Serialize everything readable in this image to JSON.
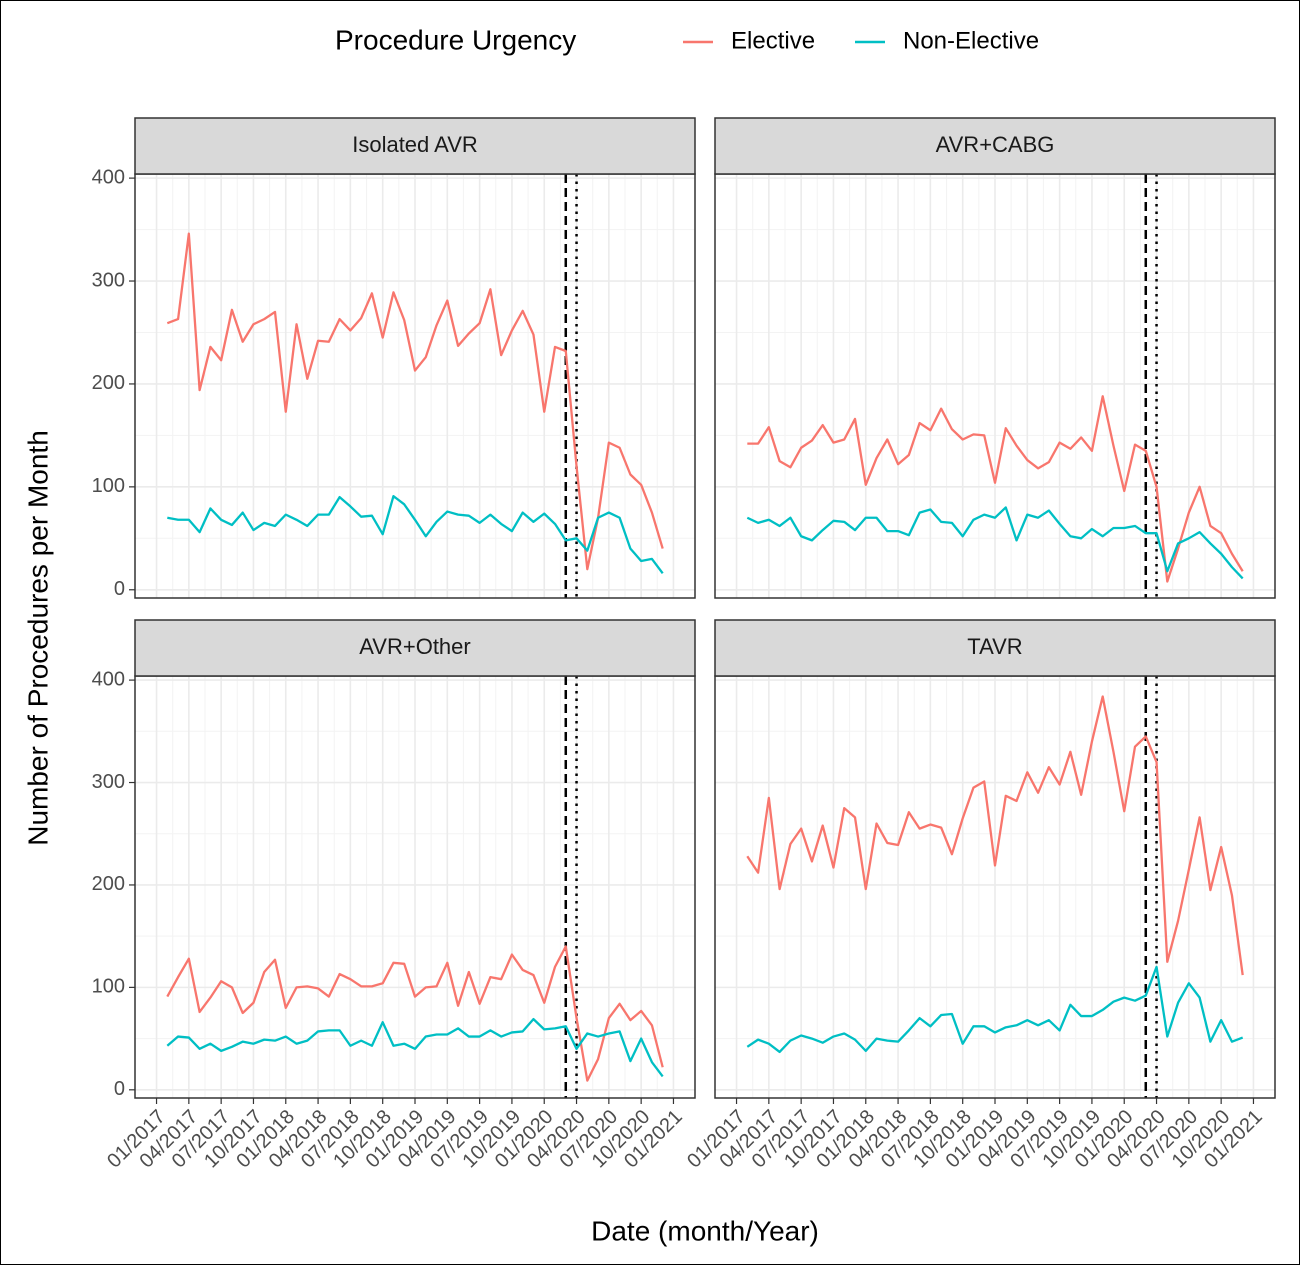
{
  "legend_title": "Procedure Urgency",
  "xlabel": "Date (month/Year)",
  "ylabel": "Number of Procedures per Month",
  "chart_data": {
    "type": "line",
    "grid": true,
    "x": [
      "02/2017",
      "03/2017",
      "04/2017",
      "05/2017",
      "06/2017",
      "07/2017",
      "08/2017",
      "09/2017",
      "10/2017",
      "11/2017",
      "12/2017",
      "01/2018",
      "02/2018",
      "03/2018",
      "04/2018",
      "05/2018",
      "06/2018",
      "07/2018",
      "08/2018",
      "09/2018",
      "10/2018",
      "11/2018",
      "12/2018",
      "01/2019",
      "02/2019",
      "03/2019",
      "04/2019",
      "05/2019",
      "06/2019",
      "07/2019",
      "08/2019",
      "09/2019",
      "10/2019",
      "11/2019",
      "12/2019",
      "01/2020",
      "02/2020",
      "03/2020",
      "04/2020",
      "05/2020",
      "06/2020",
      "07/2020",
      "08/2020",
      "09/2020",
      "10/2020",
      "11/2020",
      "12/2020"
    ],
    "xlim": [
      "11/2016",
      "03/2021"
    ],
    "xticks": [
      "01/2017",
      "04/2017",
      "07/2017",
      "10/2017",
      "01/2018",
      "04/2018",
      "07/2018",
      "10/2018",
      "01/2019",
      "04/2019",
      "07/2019",
      "10/2019",
      "01/2020",
      "04/2020",
      "07/2020",
      "10/2020",
      "01/2021"
    ],
    "ylim": [
      -8,
      404
    ],
    "yticks": [
      0,
      100,
      200,
      300,
      400
    ],
    "reference_lines": [
      {
        "x": "03/2020",
        "style": "dashed"
      },
      {
        "x": "04/2020",
        "style": "dotted"
      }
    ],
    "series": [
      {
        "name": "Elective",
        "color": "#F8766D"
      },
      {
        "name": "Non-Elective",
        "color": "#00BFC4"
      }
    ],
    "panels": [
      {
        "title": "Isolated AVR",
        "series": [
          {
            "values": [
              259,
              263,
              346,
              194,
              236,
              223,
              272,
              241,
              258,
              263,
              270,
              173,
              258,
              205,
              242,
              241,
              263,
              252,
              264,
              288,
              245,
              289,
              262,
              213,
              226,
              257,
              281,
              237,
              249,
              259,
              292,
              228,
              252,
              271,
              248,
              173,
              236,
              232,
              120,
              20,
              70,
              143,
              138,
              112,
              102,
              75,
              40
            ]
          },
          {
            "values": [
              70,
              68,
              68,
              56,
              79,
              68,
              63,
              75,
              58,
              65,
              62,
              73,
              68,
              62,
              73,
              73,
              90,
              81,
              71,
              72,
              54,
              91,
              83,
              68,
              52,
              66,
              76,
              73,
              72,
              65,
              73,
              64,
              57,
              75,
              66,
              74,
              64,
              48,
              50,
              38,
              70,
              75,
              70,
              40,
              28,
              30,
              16
            ]
          }
        ]
      },
      {
        "title": "AVR+CABG",
        "series": [
          {
            "values": [
              142,
              142,
              158,
              125,
              119,
              138,
              145,
              160,
              143,
              146,
              166,
              102,
              128,
              146,
              122,
              131,
              162,
              155,
              176,
              156,
              146,
              151,
              150,
              104,
              157,
              140,
              126,
              118,
              124,
              143,
              137,
              148,
              135,
              188,
              140,
              96,
              141,
              135,
              100,
              8,
              40,
              75,
              100,
              62,
              55,
              35,
              18
            ]
          },
          {
            "values": [
              70,
              65,
              68,
              62,
              70,
              52,
              48,
              58,
              67,
              66,
              58,
              70,
              70,
              57,
              57,
              53,
              75,
              78,
              66,
              65,
              52,
              68,
              73,
              70,
              80,
              48,
              73,
              70,
              77,
              64,
              52,
              50,
              59,
              52,
              60,
              60,
              62,
              55,
              55,
              18,
              45,
              50,
              56,
              45,
              35,
              22,
              11
            ]
          }
        ]
      },
      {
        "title": "AVR+Other",
        "series": [
          {
            "values": [
              91,
              110,
              128,
              76,
              90,
              106,
              100,
              75,
              85,
              115,
              127,
              80,
              100,
              101,
              99,
              91,
              113,
              108,
              101,
              101,
              104,
              124,
              123,
              91,
              100,
              101,
              124,
              82,
              115,
              84,
              110,
              108,
              132,
              117,
              112,
              85,
              120,
              140,
              70,
              9,
              30,
              70,
              84,
              68,
              77,
              63,
              22
            ]
          },
          {
            "values": [
              43,
              52,
              51,
              40,
              45,
              38,
              42,
              47,
              45,
              49,
              48,
              52,
              45,
              48,
              57,
              58,
              58,
              43,
              48,
              43,
              66,
              43,
              45,
              40,
              52,
              54,
              54,
              60,
              52,
              52,
              58,
              52,
              56,
              57,
              69,
              59,
              60,
              62,
              40,
              55,
              52,
              55,
              57,
              28,
              50,
              27,
              13
            ]
          }
        ]
      },
      {
        "title": "TAVR",
        "series": [
          {
            "values": [
              228,
              212,
              285,
              196,
              240,
              255,
              223,
              258,
              217,
              275,
              266,
              196,
              260,
              241,
              239,
              271,
              255,
              259,
              256,
              230,
              265,
              295,
              301,
              219,
              287,
              282,
              310,
              290,
              315,
              298,
              330,
              288,
              340,
              384,
              330,
              272,
              335,
              345,
              320,
              125,
              165,
              215,
              266,
              195,
              237,
              190,
              112
            ]
          },
          {
            "values": [
              42,
              49,
              45,
              37,
              48,
              53,
              50,
              46,
              52,
              55,
              49,
              38,
              50,
              48,
              47,
              58,
              70,
              62,
              73,
              74,
              45,
              62,
              62,
              56,
              61,
              63,
              68,
              63,
              68,
              58,
              83,
              72,
              72,
              78,
              86,
              90,
              87,
              92,
              120,
              52,
              85,
              104,
              90,
              47,
              68,
              47,
              51
            ]
          }
        ]
      }
    ]
  }
}
